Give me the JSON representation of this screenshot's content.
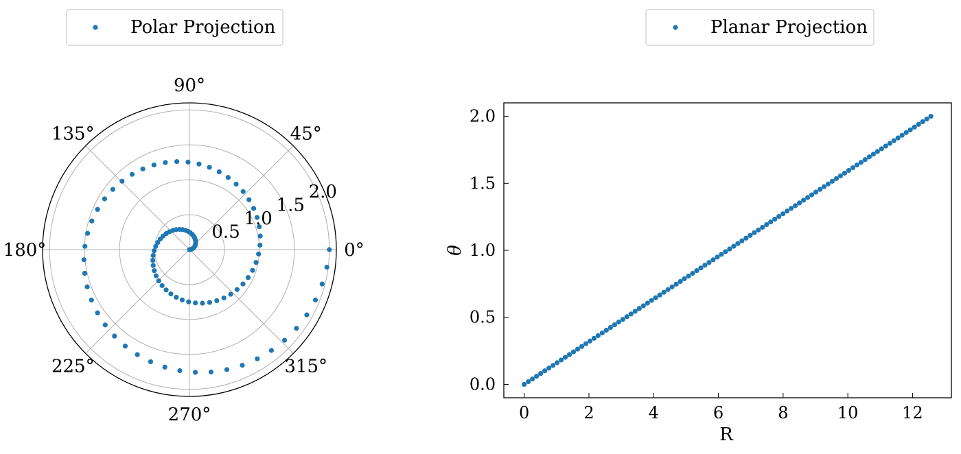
{
  "chart_data": [
    {
      "type": "scatter",
      "projection": "polar",
      "series": [
        {
          "name": "Polar Projection",
          "theta_deg": {
            "start": 0,
            "end": 720,
            "points": 100
          },
          "r": {
            "start": 0,
            "end": 2.0,
            "points": 100
          }
        }
      ],
      "angle_tick_labels": [
        "0°",
        "45°",
        "90°",
        "135°",
        "180°",
        "225°",
        "270°",
        "315°"
      ],
      "radial_tick_values": [
        0.5,
        1.0,
        1.5,
        2.0
      ],
      "radial_tick_labels": [
        "0.5",
        "1.0",
        "1.5",
        "2.0"
      ],
      "rlim": [
        0,
        2.1
      ],
      "grid": true,
      "legend_position": "top",
      "color": "#1f77b4"
    },
    {
      "type": "scatter",
      "series": [
        {
          "name": "Planar Projection",
          "x": {
            "start": 0,
            "end": 12.566,
            "points": 100
          },
          "y": {
            "start": 0,
            "end": 2.0,
            "points": 100
          }
        }
      ],
      "xlabel": "R",
      "ylabel": "θ",
      "xlim": [
        -0.63,
        13.2
      ],
      "ylim": [
        -0.1,
        2.1
      ],
      "xticks": [
        0,
        2,
        4,
        6,
        8,
        10,
        12
      ],
      "xtick_labels": [
        "0",
        "2",
        "4",
        "6",
        "8",
        "10",
        "12"
      ],
      "yticks": [
        0.0,
        0.5,
        1.0,
        1.5,
        2.0
      ],
      "ytick_labels": [
        "0.0",
        "0.5",
        "1.0",
        "1.5",
        "2.0"
      ],
      "grid": false,
      "legend_position": "top",
      "color": "#1f77b4"
    }
  ]
}
